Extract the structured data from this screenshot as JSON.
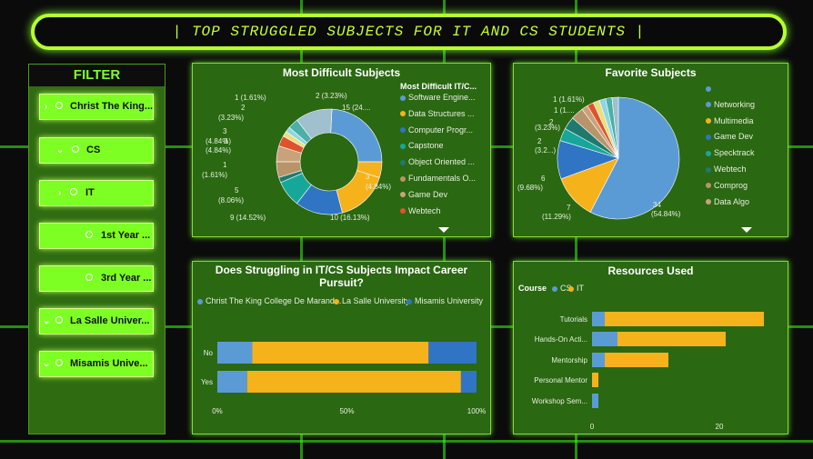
{
  "header": {
    "title": "| TOP STRUGGLED SUBJECTS FOR IT AND CS STUDENTS |"
  },
  "filter": {
    "title": "FILTER",
    "items": [
      {
        "label": "Christ The King...",
        "chevron": "›"
      },
      {
        "label": "CS",
        "chevron": "⌄"
      },
      {
        "label": "IT",
        "chevron": "›"
      },
      {
        "label": "1st Year ...",
        "chevron": ""
      },
      {
        "label": "3rd Year ...",
        "chevron": ""
      },
      {
        "label": "La Salle Univer...",
        "chevron": "⌄"
      },
      {
        "label": "Misamis Unive...",
        "chevron": "⌄"
      }
    ]
  },
  "difficult": {
    "title": "Most Difficult Subjects",
    "legend_title": "Most Difficult IT/C...",
    "legend": [
      {
        "label": "Software Engine...",
        "color": "#5b9bd5"
      },
      {
        "label": "Data Structures ...",
        "color": "#f5b21b"
      },
      {
        "label": "Computer Progr...",
        "color": "#2f75c4"
      },
      {
        "label": "Capstone",
        "color": "#17a79a"
      },
      {
        "label": "Object Oriented ...",
        "color": "#1e7a6e"
      },
      {
        "label": "Fundamentals O...",
        "color": "#b8946a"
      },
      {
        "label": "Game Dev",
        "color": "#c9a27a"
      },
      {
        "label": "Webtech",
        "color": "#e0522d"
      }
    ],
    "labels": [
      "2 (3.23%)",
      "15 (24....",
      "3",
      "(4.84%)",
      "10 (16.13%)",
      "9 (14.52%)",
      "5",
      "(8.06%)",
      "1",
      "(1.61%)",
      "3",
      "(4.84%)",
      "3",
      "(4.84%)",
      "2",
      "(3.23%)",
      "1 (1.61%)"
    ]
  },
  "favorite": {
    "title": "Favorite Subjects",
    "legend": [
      {
        "label": "",
        "color": "#5b9bd5"
      },
      {
        "label": "Networking",
        "color": "#5b9bd5"
      },
      {
        "label": "Multimedia",
        "color": "#f5b21b"
      },
      {
        "label": "Game Dev",
        "color": "#2f75c4"
      },
      {
        "label": "Specktrack",
        "color": "#17a79a"
      },
      {
        "label": "Webtech",
        "color": "#1e7a6e"
      },
      {
        "label": "Comprog",
        "color": "#b8946a"
      },
      {
        "label": "Data Algo",
        "color": "#c9a27a"
      }
    ],
    "labels": [
      "1 (1.61%)",
      "1 (1....",
      "2",
      "(3.23%)",
      "2",
      "(3.2...)",
      "6",
      "(9.68%)",
      "7",
      "(11.29%)",
      "34",
      "(54.84%)"
    ]
  },
  "career": {
    "title": "Does Struggling in IT/CS Subjects Impact Career Pursuit?",
    "legend": [
      {
        "label": "Christ The King College De Marand...",
        "color": "#5b9bd5"
      },
      {
        "label": "La Salle University",
        "color": "#f5b21b"
      },
      {
        "label": "Misamis University",
        "color": "#2f75c4"
      }
    ],
    "xticks": [
      "0%",
      "50%",
      "100%"
    ]
  },
  "resources": {
    "title": "Resources Used",
    "legend_title": "Course",
    "legend": [
      {
        "label": "CS",
        "color": "#5b9bd5"
      },
      {
        "label": "IT",
        "color": "#f5b21b"
      }
    ],
    "xticks": [
      "0",
      "20"
    ]
  },
  "chart_data": [
    {
      "type": "pie",
      "title": "Most Difficult Subjects",
      "legend_title": "Most Difficult IT/C...",
      "donut": true,
      "categories": [
        "Software Engine...",
        "Data Structures ...",
        "Computer Progr...",
        "Capstone",
        "Object Oriented ...",
        "Fundamentals O...",
        "Game Dev",
        "Webtech",
        "",
        "",
        "",
        "",
        ""
      ],
      "values": [
        15,
        3,
        10,
        9,
        5,
        1,
        3,
        3,
        2,
        1,
        1,
        2,
        7
      ],
      "colors": [
        "#5b9bd5",
        "#f5b21b",
        "#f5b21b",
        "#2f75c4",
        "#17a79a",
        "#1e7a6e",
        "#b8946a",
        "#c9a27a",
        "#e0522d",
        "#e8e07a",
        "#8fd6e0",
        "#4ab0a8",
        "#9fc0cc"
      ]
    },
    {
      "type": "pie",
      "title": "Favorite Subjects",
      "categories": [
        "Networking",
        "Multimedia",
        "Game Dev",
        "Specktrack",
        "Webtech",
        "Comprog",
        "Data Algo",
        "",
        "",
        "",
        "",
        ""
      ],
      "values": [
        34,
        7,
        6,
        2,
        2,
        2,
        1,
        1,
        1,
        1,
        1,
        1
      ],
      "colors": [
        "#5b9bd5",
        "#f5b21b",
        "#2f75c4",
        "#17a79a",
        "#1e7a6e",
        "#b8946a",
        "#c9a27a",
        "#e0522d",
        "#e8e07a",
        "#8fd6e0",
        "#4ab0a8",
        "#9fc0cc"
      ]
    },
    {
      "type": "bar",
      "orientation": "horizontal",
      "stacked": "percent",
      "title": "Does Struggling in IT/CS Subjects Impact Career Pursuit?",
      "categories": [
        "No",
        "Yes"
      ],
      "series": [
        {
          "name": "Christ The King College De Marand...",
          "values": [
            13.5,
            11.5
          ],
          "color": "#5b9bd5"
        },
        {
          "name": "La Salle University",
          "values": [
            68,
            82.5
          ],
          "color": "#f5b21b"
        },
        {
          "name": "Misamis University",
          "values": [
            18.5,
            6
          ],
          "color": "#2f75c4"
        }
      ],
      "xlim": [
        0,
        100
      ],
      "xticks": [
        "0%",
        "50%",
        "100%"
      ]
    },
    {
      "type": "bar",
      "orientation": "horizontal",
      "stacked": true,
      "title": "Resources Used",
      "legend_title": "Course",
      "categories": [
        "Tutorials",
        "Hands-On Acti...",
        "Mentorship",
        "Personal Mentor",
        "Workshop Sem..."
      ],
      "series": [
        {
          "name": "CS",
          "values": [
            2,
            4,
            2,
            0,
            1
          ],
          "color": "#5b9bd5"
        },
        {
          "name": "IT",
          "values": [
            25,
            17,
            10,
            1,
            0
          ],
          "color": "#f5b21b"
        }
      ],
      "xlim": [
        0,
        30
      ],
      "xticks": [
        0,
        20
      ]
    }
  ]
}
